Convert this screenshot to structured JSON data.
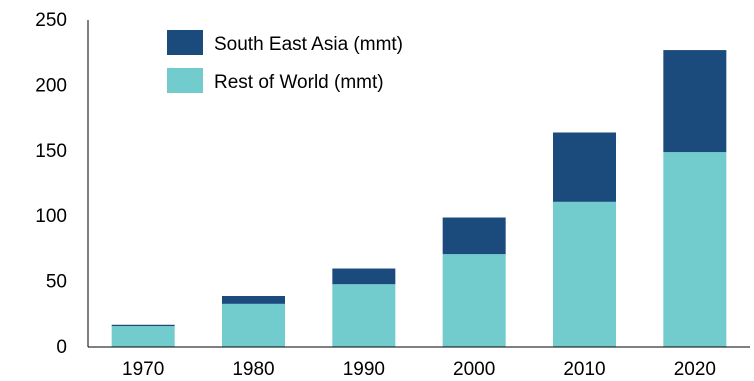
{
  "chart_data": {
    "type": "bar",
    "stacked": true,
    "title": "",
    "xlabel": "",
    "ylabel": "",
    "categories": [
      "1970",
      "1980",
      "1990",
      "2000",
      "2010",
      "2020"
    ],
    "series": [
      {
        "name": "Rest of World (mmt)",
        "color": "#72CBCC",
        "values": [
          16,
          33,
          48,
          71,
          111,
          149
        ]
      },
      {
        "name": "South East Asia (mmt)",
        "color": "#1B4A7D",
        "values": [
          1,
          6,
          12,
          28,
          53,
          78
        ]
      }
    ],
    "ylim": [
      0,
      250
    ],
    "yticks": [
      0,
      50,
      100,
      150,
      200,
      250
    ],
    "grid": false,
    "legend_position": "top-left"
  }
}
